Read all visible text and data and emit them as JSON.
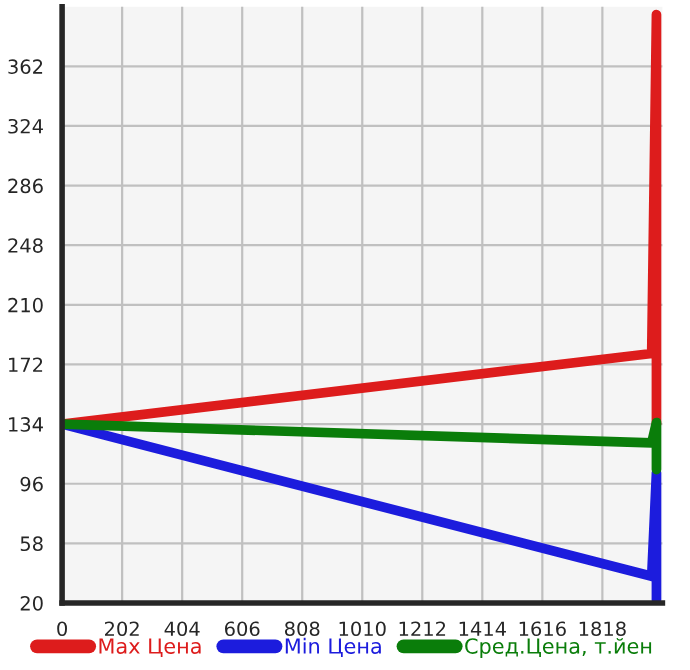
{
  "chart_data": {
    "type": "line",
    "x": [
      0,
      1984,
      2000,
      2000
    ],
    "series": [
      {
        "name": "Max Цена",
        "color": "#dd1c1c",
        "values": [
          134,
          179,
          395,
          134
        ]
      },
      {
        "name": "Min Цена",
        "color": "#1c1cdd",
        "values": [
          134,
          37,
          103,
          22
        ]
      },
      {
        "name": "Сред.Цена, т.йен",
        "color": "#0a7d0a",
        "values": [
          134,
          122,
          135,
          105
        ]
      }
    ],
    "xlim": [
      0,
      2020
    ],
    "xticks": [
      0,
      202,
      404,
      606,
      808,
      1010,
      1212,
      1414,
      1616,
      1818
    ],
    "ylim": [
      20,
      400
    ],
    "yticks": [
      20,
      58,
      96,
      134,
      172,
      210,
      248,
      286,
      324,
      362
    ],
    "grid": true,
    "legend": "bottom",
    "marker": "none",
    "line_style": "solid"
  }
}
